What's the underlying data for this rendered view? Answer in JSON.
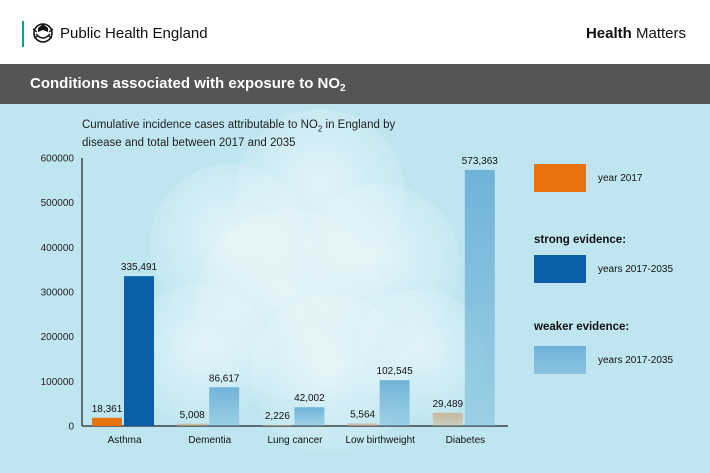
{
  "header": {
    "org_name": "Public Health England",
    "brand_bold": "Health",
    "brand_rest": " Matters",
    "accent_color": "#00a19a"
  },
  "banner": {
    "title_main": "Conditions associated with exposure to NO",
    "title_sub": "2"
  },
  "subtitle": {
    "line_a": "Cumulative incidence cases attributable to NO",
    "sub": "2",
    "line_b": " in England by disease and total between 2017 and 2035"
  },
  "legend": {
    "year2017_label": "year 2017",
    "strong_heading": "strong evidence:",
    "strong_label": "years 2017-2035",
    "weaker_heading": "weaker evidence:",
    "weaker_label": "years 2017-2035"
  },
  "colors": {
    "year2017": "#e8720c",
    "strong": "#0a5fa8",
    "weaker": "#6fb3d8",
    "panel_bg": "#bfe6f0",
    "banner_bg": "#555555"
  },
  "chart_data": {
    "type": "bar",
    "categories": [
      "Asthma",
      "Dementia",
      "Lung cancer",
      "Low birthweight",
      "Diabetes"
    ],
    "series": [
      {
        "name": "year 2017",
        "values": [
          18361,
          5008,
          2226,
          5564,
          29489
        ],
        "labels": [
          "18,361",
          "5,008",
          "2,226",
          "5,564",
          "29,489"
        ]
      },
      {
        "name": "years 2017-2035",
        "values": [
          335491,
          86617,
          42002,
          102545,
          573363
        ],
        "labels": [
          "335,491",
          "86,617",
          "42,002",
          "102,545",
          "573,363"
        ],
        "evidence": [
          "strong",
          "weaker",
          "weaker",
          "weaker",
          "weaker"
        ]
      }
    ],
    "ylim": [
      0,
      600000
    ],
    "yticks": [
      "0",
      "100000",
      "200000",
      "300000",
      "400000",
      "500000",
      "600000"
    ],
    "grid": false
  }
}
